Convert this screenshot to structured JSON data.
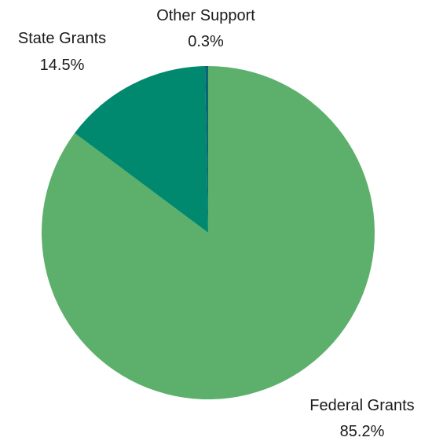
{
  "chart_data": {
    "type": "pie",
    "title": "",
    "slices": [
      {
        "label": "Federal Grants",
        "value": 85.2,
        "value_label": "85.2%",
        "color": "#5cb06b"
      },
      {
        "label": "State Grants",
        "value": 14.5,
        "value_label": "14.5%",
        "color": "#00896e"
      },
      {
        "label": "Other Support",
        "value": 0.3,
        "value_label": "0.3%",
        "color": "#0b6673"
      }
    ],
    "start_angle_deg": 0,
    "direction": "clockwise",
    "legend": "none"
  }
}
